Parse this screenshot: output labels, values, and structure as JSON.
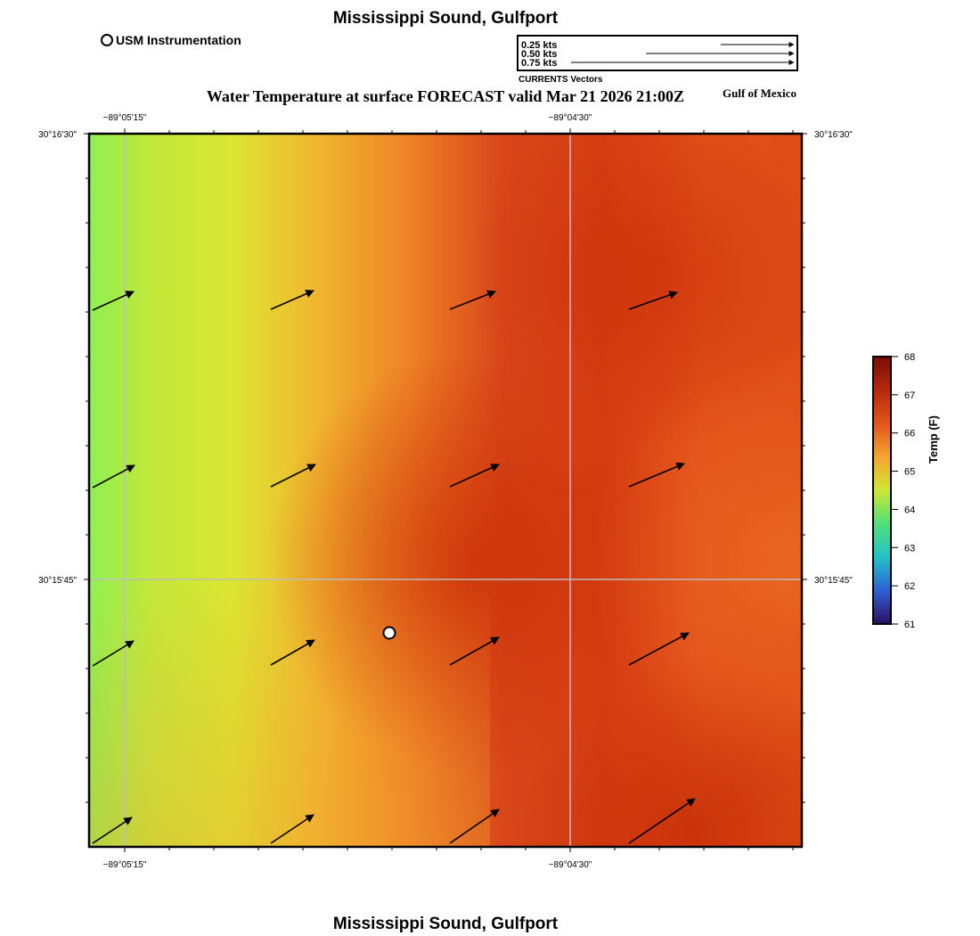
{
  "header": {
    "title": "Mississippi Sound, Gulfport",
    "subtitle": "Water Temperature at surface FORECAST valid Mar 21 2026 21:00Z",
    "region": "Gulf of Mexico",
    "footer_title": "Mississippi Sound, Gulfport"
  },
  "legend": {
    "station_label": "USM Instrumentation",
    "vector_caption": "CURRENTS Vectors",
    "vector_scale": [
      {
        "label": "0.25 kts",
        "knots": 0.25
      },
      {
        "label": "0.50 kts",
        "knots": 0.5
      },
      {
        "label": "0.75 kts",
        "knots": 0.75
      }
    ]
  },
  "map": {
    "lon_labels": [
      "−89°05'15\"",
      "−89°04'30\""
    ],
    "lat_labels": [
      "30°16'30\"",
      "30°15'45\""
    ],
    "station": {
      "name": "USM Instrumentation"
    }
  },
  "colorbar": {
    "title": "Temp (F)",
    "min": 61,
    "max": 68,
    "ticks": [
      "61",
      "62",
      "63",
      "64",
      "65",
      "66",
      "67",
      "68"
    ],
    "stops": [
      "#2a0f5e",
      "#2f5fd6",
      "#23c2c7",
      "#4fe07a",
      "#cfe632",
      "#f5a430",
      "#e2551a",
      "#b52a0d",
      "#7a0c03"
    ]
  }
}
